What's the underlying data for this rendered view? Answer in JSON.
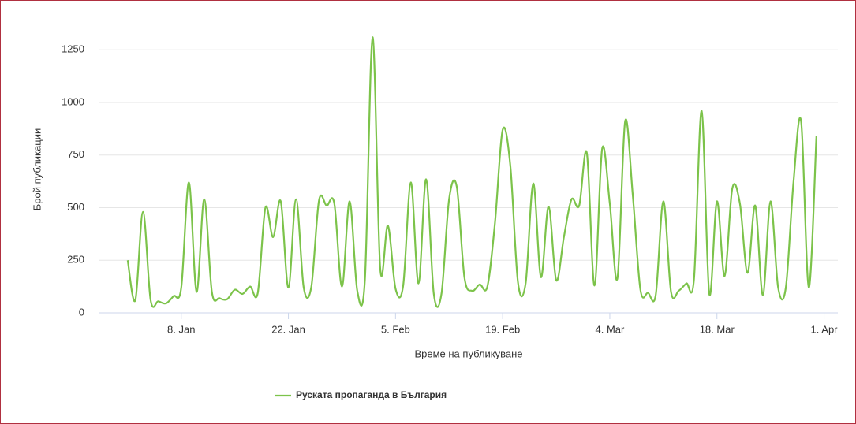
{
  "chart_data": {
    "type": "line",
    "y_axis_label": "Брой публикации",
    "x_axis_label": "Време на публикуване",
    "x": [
      1,
      2,
      3,
      4,
      5,
      6,
      7,
      8,
      9,
      10,
      11,
      12,
      13,
      14,
      15,
      16,
      17,
      18,
      19,
      20,
      21,
      22,
      23,
      24,
      25,
      26,
      27,
      28,
      29,
      30,
      31,
      32,
      33,
      34,
      35,
      36,
      37,
      38,
      39,
      40,
      41,
      42,
      43,
      44,
      45,
      46,
      47,
      48,
      49,
      50,
      51,
      52,
      53,
      54,
      55,
      56,
      57,
      58,
      59,
      60,
      61,
      62,
      63,
      64,
      65,
      66,
      67,
      68,
      69,
      70,
      71,
      72,
      73,
      74,
      75,
      76,
      77,
      78,
      79,
      80,
      81,
      82,
      83,
      84,
      85,
      86,
      87,
      88,
      89,
      90,
      91
    ],
    "series": [
      {
        "name": "Руската пропаганда в България",
        "color": "#7cc34a",
        "values": [
          250,
          60,
          480,
          60,
          55,
          45,
          80,
          120,
          620,
          100,
          540,
          100,
          70,
          65,
          110,
          90,
          125,
          95,
          500,
          360,
          530,
          120,
          540,
          120,
          125,
          535,
          510,
          520,
          125,
          530,
          105,
          160,
          1310,
          210,
          415,
          115,
          130,
          620,
          140,
          635,
          90,
          90,
          540,
          600,
          170,
          105,
          135,
          125,
          430,
          870,
          700,
          145,
          140,
          615,
          170,
          505,
          155,
          360,
          540,
          510,
          760,
          130,
          780,
          520,
          165,
          910,
          560,
          110,
          95,
          85,
          530,
          100,
          105,
          140,
          160,
          960,
          90,
          530,
          175,
          590,
          520,
          190,
          510,
          85,
          530,
          120,
          120,
          620,
          910,
          120,
          840
        ]
      }
    ],
    "xlim": [
      -2.8,
      93.8
    ],
    "xticks": [
      {
        "value": 8,
        "label": "8. Jan"
      },
      {
        "value": 22,
        "label": "22. Jan"
      },
      {
        "value": 36,
        "label": "5. Feb"
      },
      {
        "value": 50,
        "label": "19. Feb"
      },
      {
        "value": 64,
        "label": "4. Mar"
      },
      {
        "value": 78,
        "label": "18. Mar"
      },
      {
        "value": 92,
        "label": "1. Apr"
      }
    ],
    "ylim": [
      0,
      1350
    ],
    "yticks": [
      0,
      250,
      500,
      750,
      1000,
      1250
    ],
    "grid": true,
    "legend": "bottom"
  }
}
